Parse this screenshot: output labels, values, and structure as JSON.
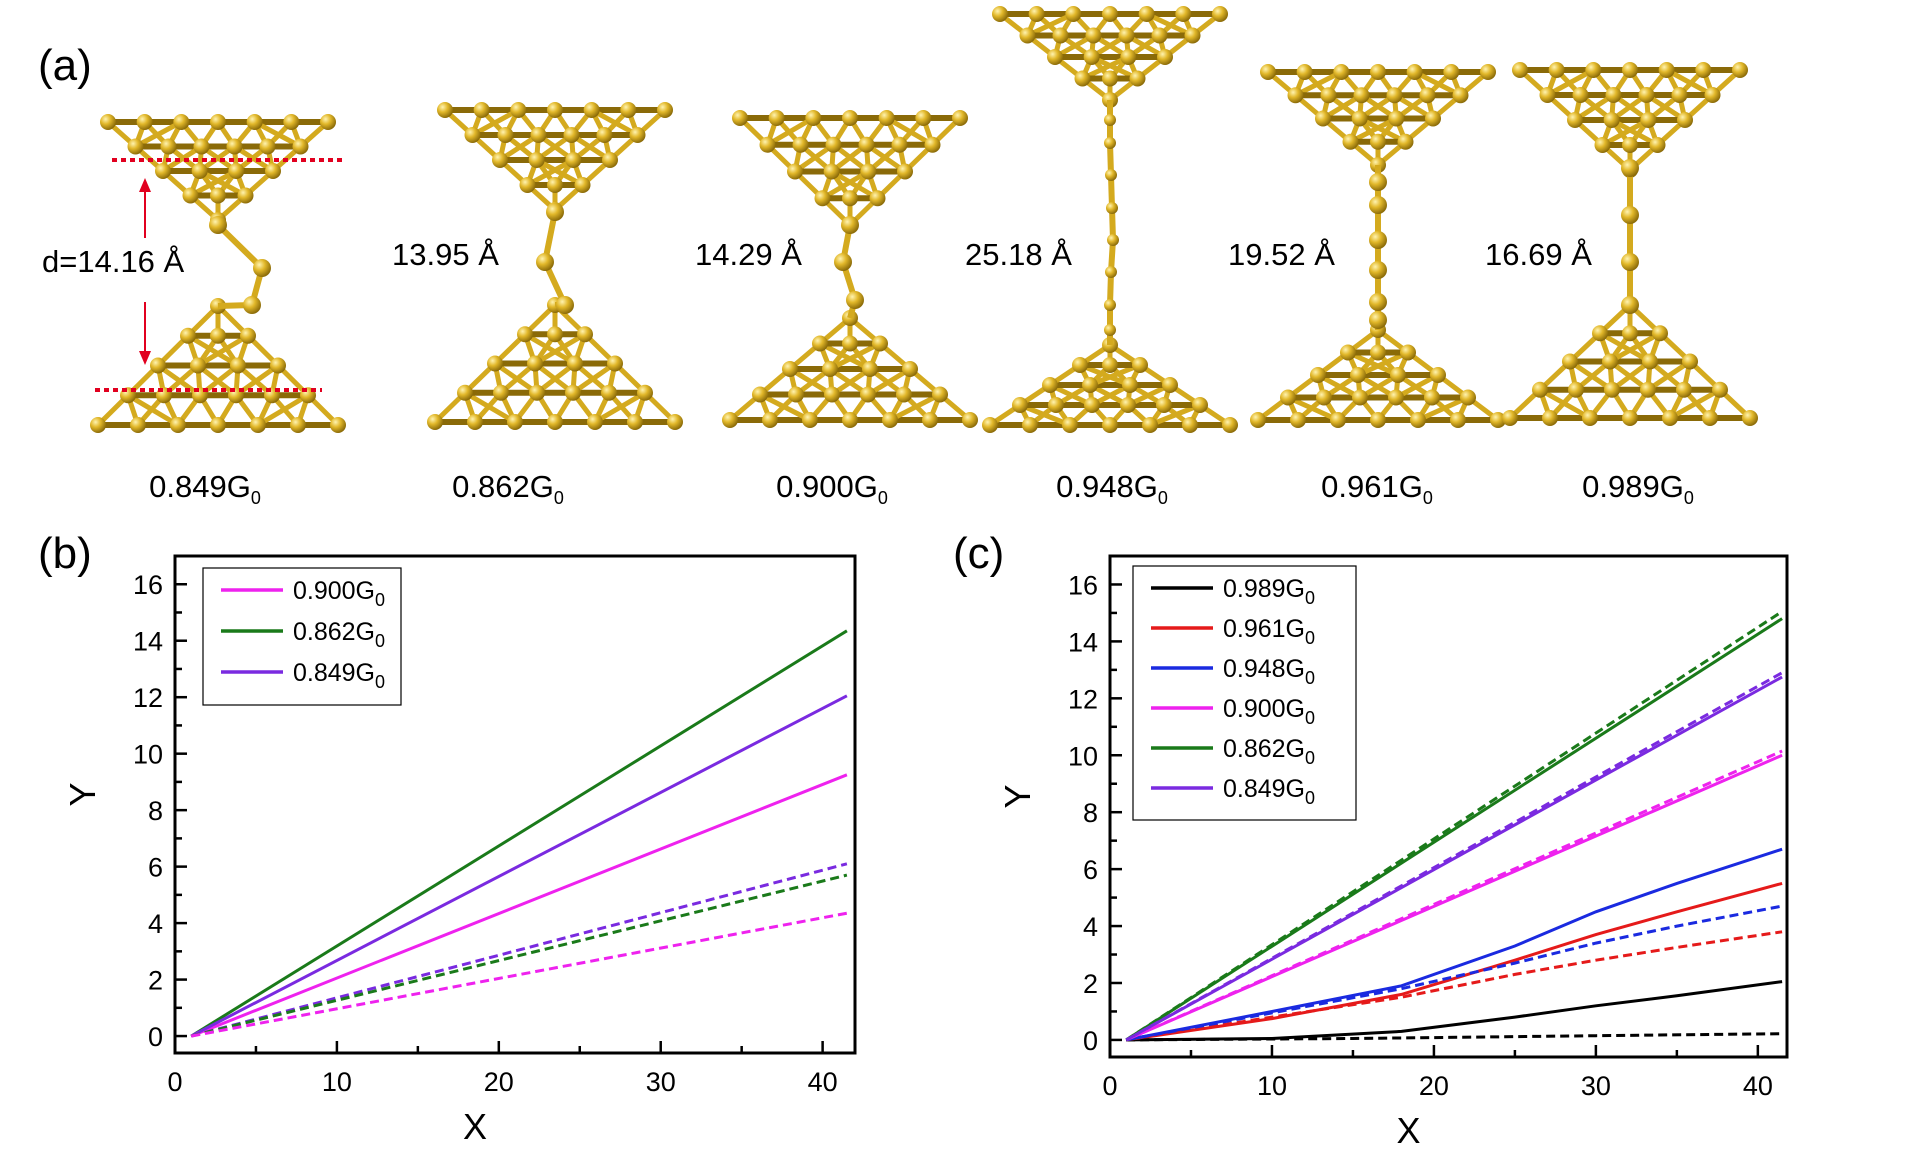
{
  "panel_a": {
    "label": "(a)",
    "gold_color": "#d4aa1e",
    "gold_dark": "#8a6a08",
    "marker_color": "#e1001f",
    "structures": [
      {
        "distance": "d=14.16 Å",
        "conductance": "0.849",
        "unit": "G",
        "unit_sub": "0"
      },
      {
        "distance": "13.95 Å",
        "conductance": "0.862",
        "unit": "G",
        "unit_sub": "0"
      },
      {
        "distance": "14.29 Å",
        "conductance": "0.900",
        "unit": "G",
        "unit_sub": "0"
      },
      {
        "distance": "25.18 Å",
        "conductance": "0.948",
        "unit": "G",
        "unit_sub": "0"
      },
      {
        "distance": "19.52 Å",
        "conductance": "0.961",
        "unit": "G",
        "unit_sub": "0"
      },
      {
        "distance": "16.69 Å",
        "conductance": "0.989",
        "unit": "G",
        "unit_sub": "0"
      }
    ]
  },
  "chart_data": [
    {
      "panel_label": "(b)",
      "type": "line",
      "xlabel": "X",
      "ylabel": "Y",
      "xlim": [
        0,
        42
      ],
      "ylim": [
        -0.6,
        17
      ],
      "xticks": [
        0,
        10,
        20,
        30,
        40
      ],
      "yticks": [
        0,
        2,
        4,
        6,
        8,
        10,
        12,
        14,
        16
      ],
      "legend_position": "top-left",
      "series": [
        {
          "name": "0.900",
          "name_sub": "0",
          "color": "#ee22ee",
          "style": "solid",
          "in_legend": true,
          "x": [
            1,
            41.5
          ],
          "y": [
            0,
            9.25
          ]
        },
        {
          "name": "0.862",
          "name_sub": "0",
          "color": "#1a7a1a",
          "style": "solid",
          "in_legend": true,
          "x": [
            1,
            41.5
          ],
          "y": [
            0,
            14.35
          ]
        },
        {
          "name": "0.849",
          "name_sub": "0",
          "color": "#7a2ae0",
          "style": "solid",
          "in_legend": true,
          "x": [
            1,
            41.5
          ],
          "y": [
            0,
            12.05
          ]
        },
        {
          "color": "#7a2ae0",
          "style": "dashed",
          "in_legend": false,
          "x": [
            1,
            41.5
          ],
          "y": [
            0,
            6.1
          ]
        },
        {
          "color": "#1a7a1a",
          "style": "dashed",
          "in_legend": false,
          "x": [
            1,
            41.5
          ],
          "y": [
            0,
            5.7
          ]
        },
        {
          "color": "#ee22ee",
          "style": "dashed",
          "in_legend": false,
          "x": [
            1,
            41.5
          ],
          "y": [
            0,
            4.35
          ]
        }
      ]
    },
    {
      "panel_label": "(c)",
      "type": "line",
      "xlabel": "X",
      "ylabel": "Y",
      "xlim": [
        0,
        41.8
      ],
      "ylim": [
        -0.6,
        17
      ],
      "xticks": [
        0,
        10,
        20,
        30,
        40
      ],
      "yticks": [
        0,
        2,
        4,
        6,
        8,
        10,
        12,
        14,
        16
      ],
      "legend_position": "top-left",
      "series": [
        {
          "name": "0.989",
          "name_sub": "0",
          "color": "#000000",
          "style": "solid",
          "in_legend": true,
          "x": [
            1,
            10,
            18,
            25,
            30,
            35,
            41.5
          ],
          "y": [
            0,
            0.05,
            0.3,
            0.8,
            1.2,
            1.55,
            2.05
          ]
        },
        {
          "name": "0.961",
          "name_sub": "0",
          "color": "#e51a1a",
          "style": "solid",
          "in_legend": true,
          "x": [
            1,
            10,
            18,
            25,
            30,
            35,
            41.5
          ],
          "y": [
            0,
            0.75,
            1.6,
            2.8,
            3.7,
            4.5,
            5.5
          ]
        },
        {
          "name": "0.948",
          "name_sub": "0",
          "color": "#1a2ae0",
          "style": "solid",
          "in_legend": true,
          "x": [
            1,
            10,
            18,
            25,
            30,
            35,
            41.5
          ],
          "y": [
            0,
            1.0,
            1.9,
            3.3,
            4.5,
            5.5,
            6.7
          ]
        },
        {
          "name": "0.900",
          "name_sub": "0",
          "color": "#ee22ee",
          "style": "solid",
          "in_legend": true,
          "x": [
            1,
            41.5
          ],
          "y": [
            0,
            10.0
          ]
        },
        {
          "name": "0.862",
          "name_sub": "0",
          "color": "#1a7a1a",
          "style": "solid",
          "in_legend": true,
          "x": [
            1,
            41.5
          ],
          "y": [
            0,
            14.8
          ]
        },
        {
          "name": "0.849",
          "name_sub": "0",
          "color": "#7a2ae0",
          "style": "solid",
          "in_legend": true,
          "x": [
            1,
            41.5
          ],
          "y": [
            0,
            12.75
          ]
        },
        {
          "color": "#000000",
          "style": "dashed",
          "in_legend": false,
          "x": [
            1,
            15,
            30,
            41.5
          ],
          "y": [
            0,
            0.05,
            0.15,
            0.22
          ]
        },
        {
          "color": "#e51a1a",
          "style": "dashed",
          "in_legend": false,
          "x": [
            1,
            10,
            18,
            25,
            30,
            35,
            41.5
          ],
          "y": [
            0,
            0.8,
            1.5,
            2.3,
            2.8,
            3.25,
            3.8
          ]
        },
        {
          "color": "#1a2ae0",
          "style": "dashed",
          "in_legend": false,
          "x": [
            1,
            10,
            18,
            25,
            30,
            35,
            41.5
          ],
          "y": [
            0,
            0.95,
            1.8,
            2.7,
            3.4,
            4.0,
            4.7
          ]
        },
        {
          "color": "#ee22ee",
          "style": "dashed",
          "in_legend": false,
          "x": [
            1,
            41.5
          ],
          "y": [
            0,
            10.15
          ]
        },
        {
          "color": "#1a7a1a",
          "style": "dashed",
          "in_legend": false,
          "x": [
            1,
            41.5
          ],
          "y": [
            0,
            15.05
          ]
        },
        {
          "color": "#7a2ae0",
          "style": "dashed",
          "in_legend": false,
          "x": [
            1,
            41.5
          ],
          "y": [
            0,
            12.9
          ]
        }
      ]
    }
  ]
}
